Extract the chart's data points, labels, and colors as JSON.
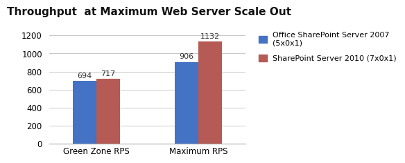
{
  "title": "Throughput  at Maximum Web Server Scale Out",
  "categories": [
    "Green Zone RPS",
    "Maximum RPS"
  ],
  "series": [
    {
      "name": "Office SharePoint Server 2007\n(5x0x1)",
      "values": [
        694,
        906
      ],
      "color": "#4472C4"
    },
    {
      "name": "SharePoint Server 2010 (7x0x1)",
      "values": [
        717,
        1132
      ],
      "color": "#B55A54"
    }
  ],
  "ylim": [
    0,
    1300
  ],
  "yticks": [
    0,
    200,
    400,
    600,
    800,
    1000,
    1200
  ],
  "bar_width": 0.35,
  "x_positions": [
    1.0,
    2.5
  ],
  "background_color": "#FFFFFF",
  "grid_color": "#C8C8C8",
  "title_fontsize": 11,
  "tick_fontsize": 8.5,
  "annotation_fontsize": 8,
  "legend_fontsize": 8
}
